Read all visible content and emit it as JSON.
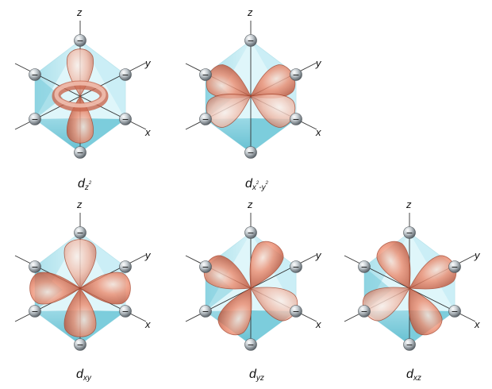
{
  "axes": {
    "z": "z",
    "y": "y",
    "x": "x"
  },
  "ligand_charge": "−",
  "colors": {
    "lobe": "#e06a4c",
    "lobe_light": "#f6cdbd",
    "lobe_dark": "#9c3c25",
    "octahedron_light": "#dff6fa",
    "octahedron_mid": "#a9e1ec",
    "octahedron_dark": "#5bbfd1",
    "ligand": "#8d969c"
  },
  "orbitals": [
    {
      "id": "dz2",
      "base": "d",
      "sub": "z",
      "sup": "2",
      "sub2": "",
      "sup2": ""
    },
    {
      "id": "dx2y2",
      "base": "d",
      "sub": "x",
      "sup": "2",
      "sub2": "-y",
      "sup2": "2"
    },
    {
      "id": "dxy",
      "base": "d",
      "sub": "xy",
      "sup": "",
      "sub2": "",
      "sup2": ""
    },
    {
      "id": "dyz",
      "base": "d",
      "sub": "yz",
      "sup": "",
      "sub2": "",
      "sup2": ""
    },
    {
      "id": "dxz",
      "base": "d",
      "sub": "xz",
      "sup": "",
      "sub2": "",
      "sup2": ""
    }
  ]
}
